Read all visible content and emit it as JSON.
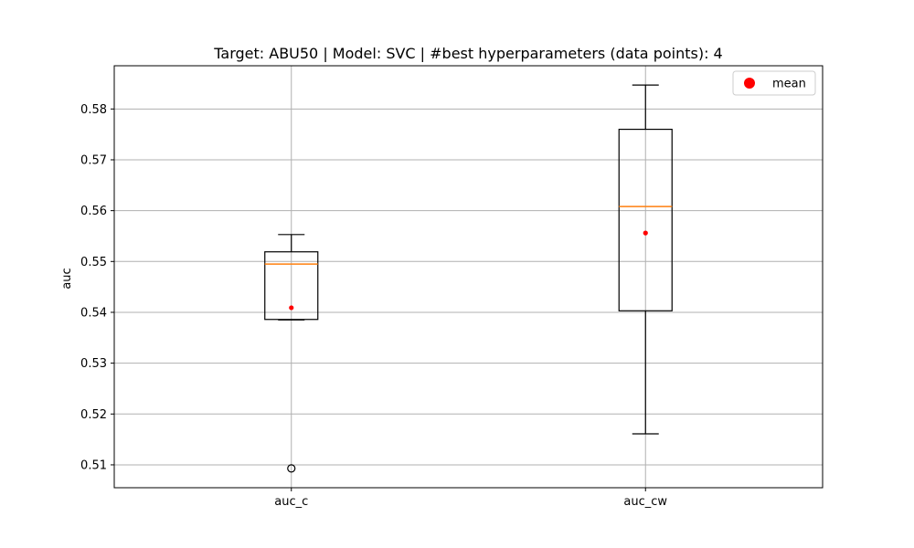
{
  "chart_data": {
    "type": "box",
    "title": "Target: ABU50 | Model: SVC | #best hyperparameters (data points): 4",
    "xlabel": "",
    "ylabel": "auc",
    "categories": [
      "auc_c",
      "auc_cw"
    ],
    "ylim": [
      0.5055,
      0.5885
    ],
    "yticks": [
      0.51,
      0.52,
      0.53,
      0.54,
      0.55,
      0.56,
      0.57,
      0.58
    ],
    "grid": true,
    "legend": {
      "position": "top-right",
      "entries": [
        "mean"
      ]
    },
    "boxes": [
      {
        "name": "auc_c",
        "whisker_low": 0.5385,
        "q1": 0.5386,
        "median": 0.5495,
        "q3": 0.5519,
        "whisker_high": 0.5553,
        "mean": 0.5409,
        "outliers": [
          0.5093
        ]
      },
      {
        "name": "auc_cw",
        "whisker_low": 0.5161,
        "q1": 0.5403,
        "median": 0.5608,
        "q3": 0.576,
        "whisker_high": 0.5847,
        "mean": 0.5556,
        "outliers": []
      }
    ],
    "colors": {
      "box": "#000000",
      "median": "#ff7f0e",
      "mean": "#ff0000",
      "grid": "#b0b0b0"
    }
  }
}
